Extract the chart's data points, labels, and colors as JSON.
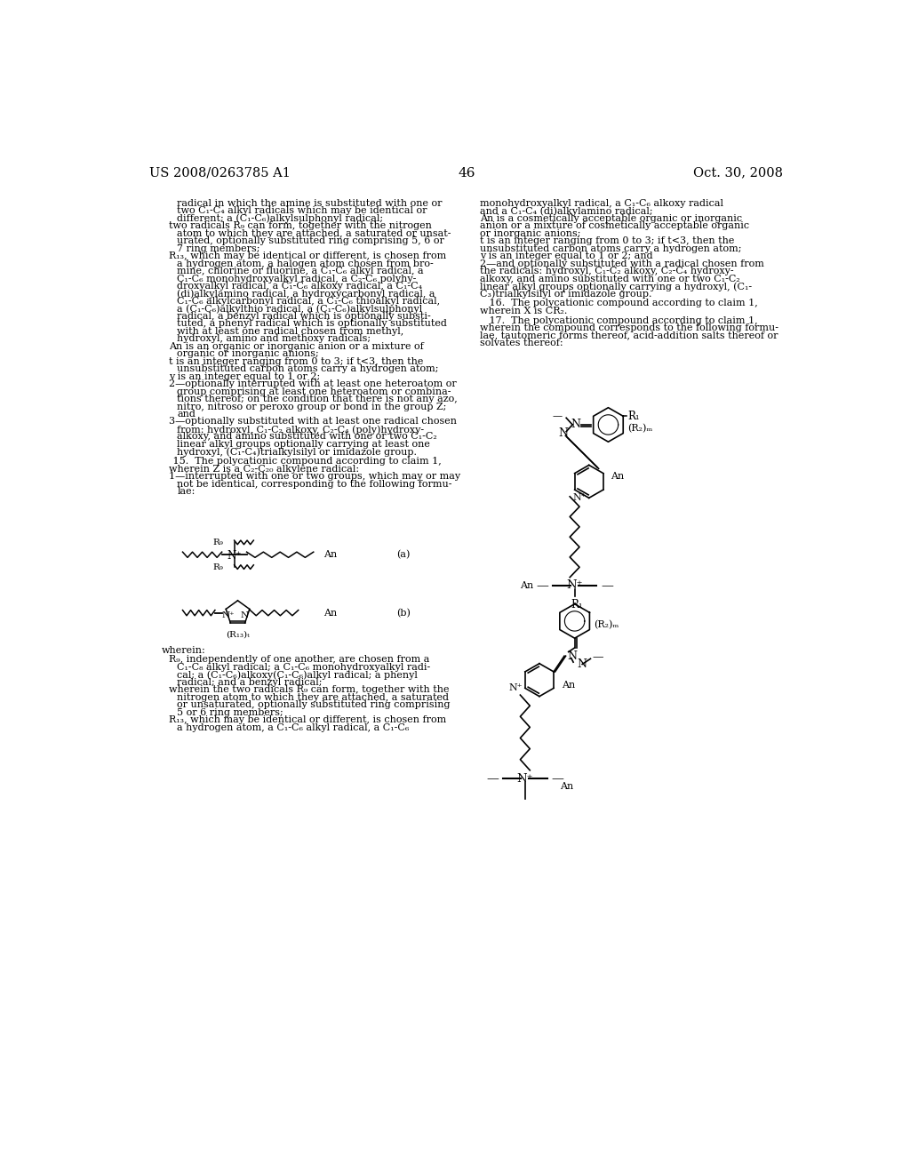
{
  "background_color": "#ffffff",
  "header_left": "US 2008/0263785 A1",
  "header_right": "Oct. 30, 2008",
  "page_number": "46",
  "body_fs": 8.0,
  "header_fs": 10.5,
  "page_fs": 11.0
}
